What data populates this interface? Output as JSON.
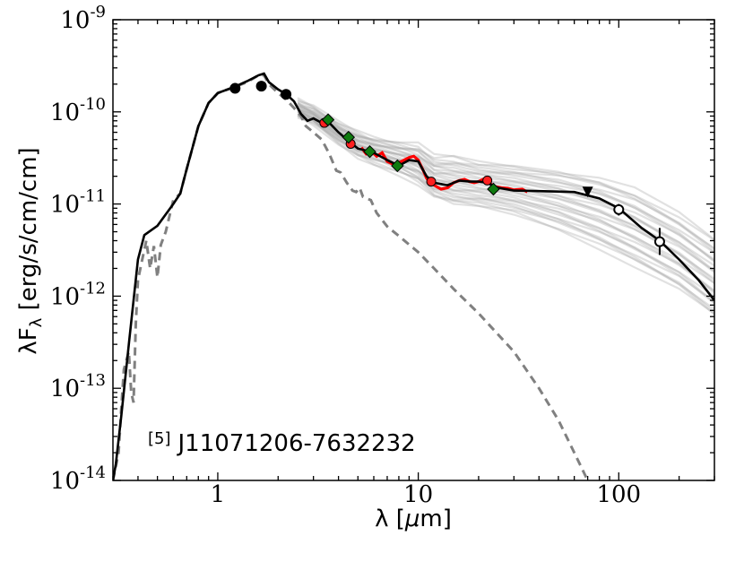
{
  "chart_data": {
    "type": "line",
    "title": "",
    "xlabel": "λ [μm]",
    "ylabel": "λFλ [erg/s/cm/cm]",
    "xscale": "log",
    "yscale": "log",
    "xlim": [
      0.3,
      300
    ],
    "ylim": [
      1e-14,
      1e-09
    ],
    "x_ticks": [
      {
        "value": 1,
        "label": "1"
      },
      {
        "value": 10,
        "label": "10"
      },
      {
        "value": 100,
        "label": "100"
      }
    ],
    "y_ticks": [
      {
        "value": 1e-14,
        "base": "10",
        "exp": "-14"
      },
      {
        "value": 1e-13,
        "base": "10",
        "exp": "-13"
      },
      {
        "value": 1e-12,
        "base": "10",
        "exp": "-12"
      },
      {
        "value": 1e-11,
        "base": "10",
        "exp": "-11"
      },
      {
        "value": 1e-10,
        "base": "10",
        "exp": "-10"
      },
      {
        "value": 1e-09,
        "base": "10",
        "exp": "-9"
      }
    ],
    "annotation": {
      "ref": "[5]",
      "name": "J11071206-7632232"
    },
    "colors": {
      "best_fit": "#000000",
      "stellar": "#808080",
      "fit_ensemble": "#a9a9a9",
      "spectrum": "#ff0000",
      "red_points": "#ff2020",
      "green_points": "#0f7a0f",
      "black_points": "#000000",
      "open_points": "#ffffff"
    },
    "fit_ensemble": {
      "count": 28,
      "lower": [
        [
          2.5,
          9e-11
        ],
        [
          3,
          7.5e-11
        ],
        [
          4,
          4.6e-11
        ],
        [
          5,
          3.3e-11
        ],
        [
          6,
          2.8e-11
        ],
        [
          8,
          2.2e-11
        ],
        [
          10,
          1.7e-11
        ],
        [
          12,
          1.2e-11
        ],
        [
          15,
          1e-11
        ],
        [
          20,
          9.5e-12
        ],
        [
          30,
          8e-12
        ],
        [
          50,
          5.5e-12
        ],
        [
          80,
          3.5e-12
        ],
        [
          120,
          2.2e-12
        ],
        [
          200,
          1.2e-12
        ],
        [
          300,
          6e-13
        ]
      ],
      "upper": [
        [
          2.5,
          1.3e-10
        ],
        [
          3,
          1.1e-10
        ],
        [
          4,
          7.5e-11
        ],
        [
          5,
          6e-11
        ],
        [
          6,
          5.2e-11
        ],
        [
          8,
          4.6e-11
        ],
        [
          10,
          4.3e-11
        ],
        [
          12,
          3.2e-11
        ],
        [
          15,
          3.2e-11
        ],
        [
          20,
          2.8e-11
        ],
        [
          30,
          2.6e-11
        ],
        [
          50,
          2.3e-11
        ],
        [
          80,
          1.9e-11
        ],
        [
          120,
          1.4e-11
        ],
        [
          200,
          7.5e-12
        ],
        [
          300,
          4e-12
        ]
      ]
    },
    "series": [
      {
        "name": "best_fit_model",
        "style": "solid",
        "points": [
          [
            0.3,
            1e-14
          ],
          [
            0.31,
            1.5e-14
          ],
          [
            0.33,
            5e-14
          ],
          [
            0.36,
            3e-13
          ],
          [
            0.4,
            2.5e-12
          ],
          [
            0.43,
            4.6e-12
          ],
          [
            0.5,
            5.8e-12
          ],
          [
            0.6,
            1e-11
          ],
          [
            0.65,
            1.3e-11
          ],
          [
            0.7,
            2.4e-11
          ],
          [
            0.8,
            7e-11
          ],
          [
            0.9,
            1.25e-10
          ],
          [
            1.0,
            1.6e-10
          ],
          [
            1.2,
            1.85e-10
          ],
          [
            1.4,
            2.15e-10
          ],
          [
            1.6,
            2.5e-10
          ],
          [
            1.7,
            2.6e-10
          ],
          [
            1.8,
            2.1e-10
          ],
          [
            2.0,
            1.75e-10
          ],
          [
            2.2,
            1.55e-10
          ],
          [
            2.4,
            1.3e-10
          ],
          [
            2.6,
            9.5e-11
          ],
          [
            2.8,
            8e-11
          ],
          [
            3.0,
            8.5e-11
          ],
          [
            3.3,
            7.6e-11
          ],
          [
            3.6,
            7.6e-11
          ],
          [
            4.0,
            6e-11
          ],
          [
            4.5,
            4.8e-11
          ],
          [
            5.0,
            4e-11
          ],
          [
            5.5,
            3.8e-11
          ],
          [
            6.0,
            3.6e-11
          ],
          [
            7.0,
            3e-11
          ],
          [
            8.0,
            2.6e-11
          ],
          [
            9.0,
            3e-11
          ],
          [
            10.0,
            2.9e-11
          ],
          [
            11.0,
            2e-11
          ],
          [
            12.0,
            1.7e-11
          ],
          [
            14.0,
            1.6e-11
          ],
          [
            16.0,
            1.8e-11
          ],
          [
            18.0,
            1.75e-11
          ],
          [
            20.0,
            1.75e-11
          ],
          [
            22.0,
            1.7e-11
          ],
          [
            25.0,
            1.5e-11
          ],
          [
            30.0,
            1.4e-11
          ],
          [
            40.0,
            1.38e-11
          ],
          [
            60.0,
            1.35e-11
          ],
          [
            80.0,
            1.15e-11
          ],
          [
            100.0,
            9e-12
          ],
          [
            130.0,
            5.5e-12
          ],
          [
            160.0,
            4e-12
          ],
          [
            200.0,
            2.5e-12
          ],
          [
            250.0,
            1.5e-12
          ],
          [
            300.0,
            9e-13
          ]
        ]
      },
      {
        "name": "stellar_photosphere",
        "style": "dashed",
        "points": [
          [
            0.3,
            1e-14
          ],
          [
            0.32,
            2e-14
          ],
          [
            0.33,
            6e-14
          ],
          [
            0.34,
            1.6e-13
          ],
          [
            0.36,
            2.5e-13
          ],
          [
            0.37,
            9e-14
          ],
          [
            0.38,
            7e-14
          ],
          [
            0.39,
            5e-13
          ],
          [
            0.4,
            1.5e-12
          ],
          [
            0.42,
            2.5e-12
          ],
          [
            0.44,
            4e-12
          ],
          [
            0.46,
            2e-12
          ],
          [
            0.48,
            3.5e-12
          ],
          [
            0.5,
            1.6e-12
          ],
          [
            0.52,
            3.6e-12
          ],
          [
            0.55,
            5e-12
          ],
          [
            0.6,
            1.1e-11
          ],
          [
            0.65,
            1.3e-11
          ],
          [
            0.7,
            2.4e-11
          ],
          [
            0.8,
            7e-11
          ],
          [
            0.9,
            1.25e-10
          ],
          [
            1.0,
            1.6e-10
          ],
          [
            1.2,
            1.85e-10
          ],
          [
            1.4,
            2.1e-10
          ],
          [
            1.6,
            2.5e-10
          ],
          [
            1.7,
            2.5e-10
          ],
          [
            1.8,
            2e-10
          ],
          [
            2.0,
            1.6e-10
          ],
          [
            2.2,
            1.35e-10
          ],
          [
            2.4,
            1.1e-10
          ],
          [
            2.6,
            9e-11
          ],
          [
            2.75,
            7e-11
          ],
          [
            3.0,
            6e-11
          ],
          [
            3.3,
            5e-11
          ],
          [
            3.6,
            3.5e-11
          ],
          [
            3.9,
            2.3e-11
          ],
          [
            4.1,
            2.2e-11
          ],
          [
            4.4,
            1.7e-11
          ],
          [
            4.7,
            1.4e-11
          ],
          [
            4.9,
            1.35e-11
          ],
          [
            5.1,
            1.5e-11
          ],
          [
            5.3,
            1.2e-11
          ],
          [
            5.8,
            1.1e-11
          ],
          [
            6.2,
            8e-12
          ],
          [
            7.0,
            5.7e-12
          ],
          [
            8.0,
            4.5e-12
          ],
          [
            10.0,
            3e-12
          ],
          [
            12.0,
            2e-12
          ],
          [
            15.0,
            1.2e-12
          ],
          [
            20.0,
            6.5e-13
          ],
          [
            30.0,
            2.5e-13
          ],
          [
            40.0,
            1e-13
          ],
          [
            50.0,
            4.5e-14
          ],
          [
            60.0,
            2e-14
          ],
          [
            65.0,
            1.4e-14
          ],
          [
            70.0,
            1e-14
          ]
        ]
      },
      {
        "name": "irs_spectrum",
        "style": "solid",
        "points": [
          [
            5.2,
            4.1e-11
          ],
          [
            5.5,
            3.5e-11
          ],
          [
            5.8,
            3.8e-11
          ],
          [
            6.2,
            3.3e-11
          ],
          [
            6.6,
            3.6e-11
          ],
          [
            7.0,
            2.9e-11
          ],
          [
            7.5,
            2.7e-11
          ],
          [
            8.0,
            2.8e-11
          ],
          [
            8.5,
            3e-11
          ],
          [
            9.0,
            3.2e-11
          ],
          [
            9.5,
            3.3e-11
          ],
          [
            10.0,
            3e-11
          ],
          [
            10.5,
            2.4e-11
          ],
          [
            11.0,
            1.9e-11
          ],
          [
            11.5,
            1.7e-11
          ],
          [
            12.0,
            1.6e-11
          ],
          [
            13.0,
            1.45e-11
          ],
          [
            14.0,
            1.5e-11
          ],
          [
            15.0,
            1.7e-11
          ],
          [
            16.0,
            1.8e-11
          ],
          [
            17.0,
            1.85e-11
          ],
          [
            18.0,
            1.75e-11
          ],
          [
            19.0,
            1.7e-11
          ],
          [
            20.0,
            1.75e-11
          ],
          [
            21.0,
            1.85e-11
          ],
          [
            22.0,
            1.75e-11
          ],
          [
            24.0,
            1.55e-11
          ],
          [
            26.0,
            1.5e-11
          ],
          [
            28.0,
            1.48e-11
          ],
          [
            30.0,
            1.42e-11
          ],
          [
            33.0,
            1.45e-11
          ],
          [
            35.0,
            1.35e-11
          ]
        ]
      }
    ],
    "points_black": [
      [
        1.22,
        1.8e-10
      ],
      [
        1.65,
        1.9e-10
      ],
      [
        2.19,
        1.55e-10
      ]
    ],
    "points_green": [
      [
        3.55,
        8.2e-11
      ],
      [
        4.49,
        5.3e-11
      ],
      [
        5.73,
        3.7e-11
      ],
      [
        7.87,
        2.6e-11
      ],
      [
        23.7,
        1.45e-11
      ]
    ],
    "points_red": [
      [
        3.4,
        7.6e-11
      ],
      [
        4.6,
        4.5e-11
      ],
      [
        11.6,
        1.75e-11
      ],
      [
        22.1,
        1.8e-11
      ]
    ],
    "points_open": [
      [
        100,
        8.7e-12,
        7.5e-12,
        1e-11
      ],
      [
        160,
        3.9e-12,
        2.8e-12,
        5.5e-12
      ]
    ],
    "upper_limits": [
      [
        70,
        1.35e-11
      ]
    ]
  }
}
